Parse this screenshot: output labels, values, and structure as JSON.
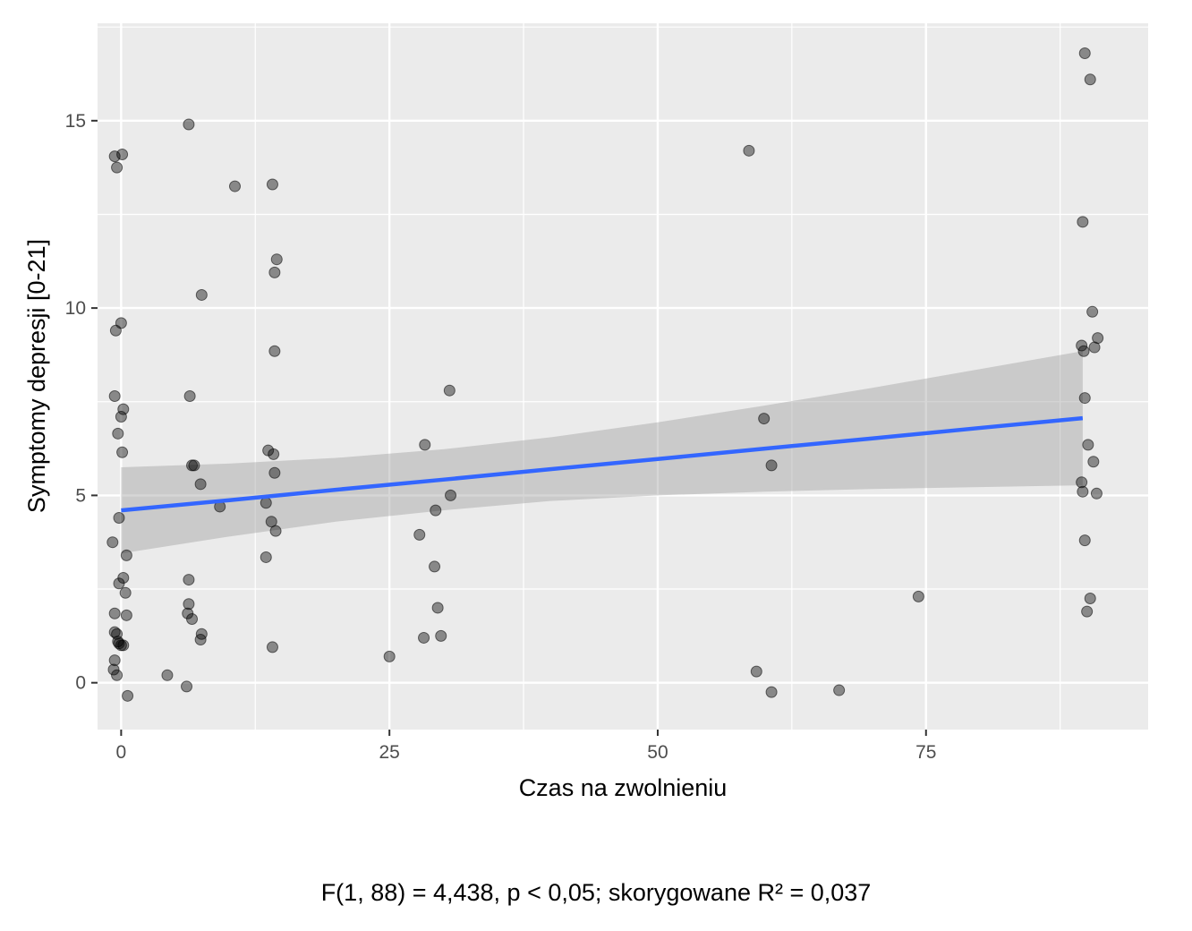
{
  "chart_data": {
    "type": "scatter",
    "xlabel": "Czas na zwolnieniu",
    "ylabel": "Symptomy depresji [0-21]",
    "xlim": [
      -2.2,
      95.7
    ],
    "ylim": [
      -1.25,
      17.6
    ],
    "x_ticks": [
      0,
      25,
      50,
      75
    ],
    "y_ticks": [
      0,
      5,
      10,
      15
    ],
    "grid": true,
    "colors": {
      "panel": "#ebebeb",
      "grid": "#ffffff",
      "point": "#000000",
      "line": "#3366ff",
      "ribbon": "#999999"
    },
    "points": [
      {
        "x": -0.6,
        "y": 14.05
      },
      {
        "x": 0.1,
        "y": 14.1
      },
      {
        "x": -0.4,
        "y": 13.75
      },
      {
        "x": 0.0,
        "y": 9.6
      },
      {
        "x": -0.5,
        "y": 9.4
      },
      {
        "x": -0.6,
        "y": 7.65
      },
      {
        "x": 0.2,
        "y": 7.3
      },
      {
        "x": 0.0,
        "y": 7.1
      },
      {
        "x": -0.3,
        "y": 6.65
      },
      {
        "x": 0.1,
        "y": 6.15
      },
      {
        "x": -0.2,
        "y": 4.4
      },
      {
        "x": -0.8,
        "y": 3.75
      },
      {
        "x": 0.5,
        "y": 3.4
      },
      {
        "x": 0.2,
        "y": 2.8
      },
      {
        "x": -0.2,
        "y": 2.65
      },
      {
        "x": 0.4,
        "y": 2.4
      },
      {
        "x": -0.6,
        "y": 1.85
      },
      {
        "x": 0.5,
        "y": 1.8
      },
      {
        "x": -0.6,
        "y": 1.35
      },
      {
        "x": -0.4,
        "y": 1.3
      },
      {
        "x": -0.3,
        "y": 1.1
      },
      {
        "x": -0.2,
        "y": 1.05
      },
      {
        "x": 0.0,
        "y": 1.0
      },
      {
        "x": 0.2,
        "y": 1.0
      },
      {
        "x": -0.6,
        "y": 0.6
      },
      {
        "x": -0.7,
        "y": 0.35
      },
      {
        "x": -0.4,
        "y": 0.2
      },
      {
        "x": 0.6,
        "y": -0.35
      },
      {
        "x": 6.3,
        "y": 14.9
      },
      {
        "x": 7.5,
        "y": 10.35
      },
      {
        "x": 6.4,
        "y": 7.65
      },
      {
        "x": 6.6,
        "y": 5.8
      },
      {
        "x": 6.8,
        "y": 5.8
      },
      {
        "x": 7.4,
        "y": 5.3
      },
      {
        "x": 6.3,
        "y": 2.75
      },
      {
        "x": 6.3,
        "y": 2.1
      },
      {
        "x": 6.2,
        "y": 1.85
      },
      {
        "x": 6.6,
        "y": 1.7
      },
      {
        "x": 7.5,
        "y": 1.3
      },
      {
        "x": 7.4,
        "y": 1.15
      },
      {
        "x": 6.1,
        "y": -0.1
      },
      {
        "x": 4.3,
        "y": 0.2
      },
      {
        "x": 9.2,
        "y": 4.7
      },
      {
        "x": 10.6,
        "y": 13.25
      },
      {
        "x": 14.1,
        "y": 13.3
      },
      {
        "x": 14.5,
        "y": 11.3
      },
      {
        "x": 14.3,
        "y": 10.95
      },
      {
        "x": 14.3,
        "y": 8.85
      },
      {
        "x": 13.7,
        "y": 6.2
      },
      {
        "x": 14.2,
        "y": 6.1
      },
      {
        "x": 14.3,
        "y": 5.6
      },
      {
        "x": 13.5,
        "y": 4.8
      },
      {
        "x": 14.0,
        "y": 4.3
      },
      {
        "x": 14.4,
        "y": 4.05
      },
      {
        "x": 13.5,
        "y": 3.35
      },
      {
        "x": 14.1,
        "y": 0.95
      },
      {
        "x": 25.0,
        "y": 0.7
      },
      {
        "x": 30.6,
        "y": 7.8
      },
      {
        "x": 28.3,
        "y": 6.35
      },
      {
        "x": 30.7,
        "y": 5.0
      },
      {
        "x": 29.3,
        "y": 4.6
      },
      {
        "x": 27.8,
        "y": 3.95
      },
      {
        "x": 29.2,
        "y": 3.1
      },
      {
        "x": 29.5,
        "y": 2.0
      },
      {
        "x": 29.8,
        "y": 1.25
      },
      {
        "x": 28.2,
        "y": 1.2
      },
      {
        "x": 58.5,
        "y": 14.2
      },
      {
        "x": 59.9,
        "y": 7.05
      },
      {
        "x": 60.6,
        "y": 5.8
      },
      {
        "x": 59.2,
        "y": 0.3
      },
      {
        "x": 60.6,
        "y": -0.25
      },
      {
        "x": 66.9,
        "y": -0.2
      },
      {
        "x": 74.3,
        "y": 2.3
      },
      {
        "x": 89.8,
        "y": 16.8
      },
      {
        "x": 90.3,
        "y": 16.1
      },
      {
        "x": 89.6,
        "y": 12.3
      },
      {
        "x": 90.5,
        "y": 9.9
      },
      {
        "x": 91.0,
        "y": 9.2
      },
      {
        "x": 89.5,
        "y": 9.0
      },
      {
        "x": 90.7,
        "y": 8.95
      },
      {
        "x": 89.7,
        "y": 8.85
      },
      {
        "x": 89.8,
        "y": 7.6
      },
      {
        "x": 90.1,
        "y": 6.35
      },
      {
        "x": 90.6,
        "y": 5.9
      },
      {
        "x": 89.5,
        "y": 5.35
      },
      {
        "x": 89.6,
        "y": 5.1
      },
      {
        "x": 90.9,
        "y": 5.05
      },
      {
        "x": 89.8,
        "y": 3.8
      },
      {
        "x": 90.3,
        "y": 2.25
      },
      {
        "x": 90.0,
        "y": 1.9
      }
    ],
    "fit": {
      "x": [
        0,
        10,
        20,
        30,
        40,
        50,
        60,
        70,
        80,
        89.6
      ],
      "y": [
        4.6,
        4.87,
        5.15,
        5.42,
        5.7,
        5.97,
        6.25,
        6.52,
        6.8,
        7.06
      ],
      "lower": [
        3.45,
        3.9,
        4.3,
        4.6,
        4.85,
        5.0,
        5.1,
        5.17,
        5.22,
        5.27
      ],
      "upper": [
        5.75,
        5.85,
        6.0,
        6.23,
        6.55,
        6.95,
        7.4,
        7.87,
        8.37,
        8.85
      ]
    },
    "annotation": "F(1, 88) = 4,438, p < 0,05; skorygowane R² = 0,037"
  }
}
